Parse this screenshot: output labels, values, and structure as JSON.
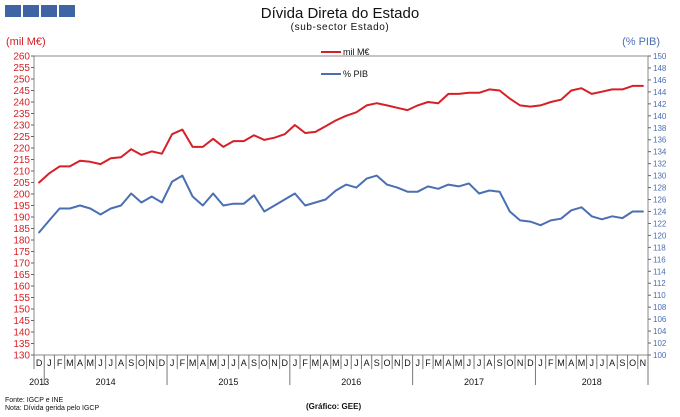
{
  "chart_data": {
    "type": "line",
    "title": "Dívida Direta do Estado",
    "subtitle": "(sub-sector Estado)",
    "ylabel_left": "(mil M€)",
    "ylabel_right": "(% PIB)",
    "ylim_left": [
      130,
      260
    ],
    "ylim_right": [
      100,
      150
    ],
    "left_ticks": [
      130,
      135,
      140,
      145,
      150,
      155,
      160,
      165,
      170,
      175,
      180,
      185,
      190,
      195,
      200,
      205,
      210,
      215,
      220,
      225,
      230,
      235,
      240,
      245,
      250,
      255,
      260
    ],
    "right_ticks": [
      100,
      102,
      104,
      106,
      108,
      110,
      112,
      114,
      116,
      118,
      120,
      122,
      124,
      126,
      128,
      130,
      132,
      134,
      136,
      138,
      140,
      142,
      144,
      146,
      148,
      150
    ],
    "month_labels": [
      "D",
      "J",
      "F",
      "M",
      "A",
      "M",
      "J",
      "J",
      "A",
      "S",
      "O",
      "N",
      "D",
      "J",
      "F",
      "M",
      "A",
      "M",
      "J",
      "J",
      "A",
      "S",
      "O",
      "N",
      "D",
      "J",
      "F",
      "M",
      "A",
      "M",
      "J",
      "J",
      "A",
      "S",
      "O",
      "N",
      "D",
      "J",
      "F",
      "M",
      "A",
      "M",
      "J",
      "J",
      "A",
      "S",
      "O",
      "N",
      "D",
      "J",
      "F",
      "M",
      "A",
      "M",
      "J",
      "J",
      "A",
      "S",
      "O",
      "N"
    ],
    "year_labels": [
      "2013",
      "2014",
      "2015",
      "2016",
      "2017",
      "2018"
    ],
    "legend_position": "top-center",
    "grid": false,
    "series": [
      {
        "name": "mil M€",
        "axis": "left",
        "color": "#d62027",
        "values": [
          205,
          209,
          212,
          212,
          214.5,
          214,
          213,
          215.5,
          216,
          219.5,
          217,
          218.5,
          217.5,
          226,
          228,
          220.5,
          220.5,
          224,
          220.5,
          223,
          223,
          225.5,
          223.5,
          224.5,
          226,
          230,
          226.5,
          227,
          229.5,
          232,
          234,
          235.5,
          238.5,
          239.5,
          238.5,
          237.5,
          236.5,
          238.5,
          240,
          239.5,
          243.5,
          243.5,
          244,
          244,
          245.5,
          245,
          241.5,
          238.5,
          238,
          238.5,
          240,
          241,
          245,
          246,
          243.5,
          244.5,
          245.5,
          245.5,
          247,
          247
        ]
      },
      {
        "name": "% PIB",
        "axis": "right",
        "color": "#4a6fb3",
        "values": [
          120.5,
          122.5,
          124.5,
          124.5,
          125,
          124.5,
          123.5,
          124.5,
          125,
          127,
          125.5,
          126.5,
          125.5,
          129,
          130,
          126.5,
          125,
          127,
          125,
          125.3,
          125.3,
          126.7,
          124,
          125,
          126,
          127,
          125,
          125.5,
          126,
          127.5,
          128.5,
          128,
          129.5,
          130,
          128.5,
          128,
          127.3,
          127.3,
          128.2,
          127.8,
          128.5,
          128.2,
          128.7,
          127,
          127.5,
          127.3,
          124,
          122.5,
          122.3,
          121.7,
          122.5,
          122.8,
          124.2,
          124.7,
          123.2,
          122.7,
          123.2,
          122.9,
          124,
          124
        ]
      }
    ]
  },
  "source_note": "Fonte: IGCP e INE\nNota: Dívida gerida pelo IGCP",
  "credit": "(Gráfico:  GEE)",
  "logo_color": "#3f64a3"
}
